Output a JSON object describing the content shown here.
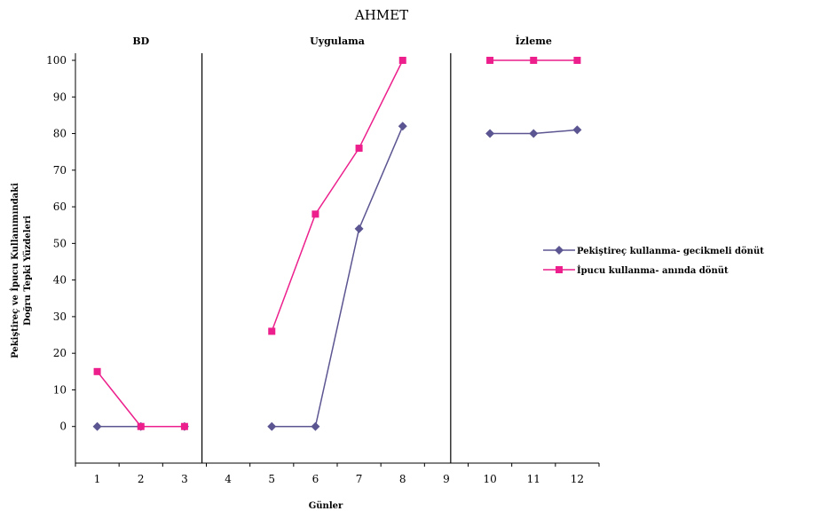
{
  "chart_data": {
    "type": "line",
    "title": "AHMET",
    "xlabel": "Günler",
    "ylabel_lines": [
      "Pekiştireç ve İpucu Kullanımındaki",
      "Doğru Tepki Yüzdeleri"
    ],
    "categories": [
      "1",
      "2",
      "3",
      "4",
      "5",
      "6",
      "7",
      "8",
      "9",
      "10",
      "11",
      "12"
    ],
    "x": [
      1,
      2,
      3,
      4,
      5,
      6,
      7,
      8,
      9,
      10,
      11,
      12
    ],
    "ylim": [
      -10,
      100
    ],
    "yticks": [
      0,
      10,
      20,
      30,
      40,
      50,
      60,
      70,
      80,
      90,
      100
    ],
    "grid": false,
    "legend_position": "right",
    "phases": [
      {
        "label": "BD",
        "x_start": 1,
        "x_end": 3
      },
      {
        "label": "Uygulama",
        "x_start": 5,
        "x_end": 8
      },
      {
        "label": "İzleme",
        "x_start": 10,
        "x_end": 12
      }
    ],
    "phase_lines_x": [
      3.4,
      9.1
    ],
    "series": [
      {
        "name": "Pekiştireç kullanma- gecikmeli dönüt",
        "color": "#5b5591",
        "marker": "diamond",
        "segments": [
          {
            "x": [
              1,
              2,
              3
            ],
            "y": [
              0,
              0,
              0
            ]
          },
          {
            "x": [
              5,
              6,
              7,
              8
            ],
            "y": [
              0,
              0,
              54,
              82
            ]
          },
          {
            "x": [
              10,
              11,
              12
            ],
            "y": [
              80,
              80,
              81
            ]
          }
        ]
      },
      {
        "name": "İpucu kullanma- anında dönüt",
        "color": "#ec1f8c",
        "marker": "square",
        "segments": [
          {
            "x": [
              1,
              2,
              3
            ],
            "y": [
              15,
              0,
              0
            ]
          },
          {
            "x": [
              5,
              6,
              7,
              8
            ],
            "y": [
              26,
              58,
              76,
              100
            ]
          },
          {
            "x": [
              10,
              11,
              12
            ],
            "y": [
              100,
              100,
              100
            ]
          }
        ]
      }
    ]
  }
}
